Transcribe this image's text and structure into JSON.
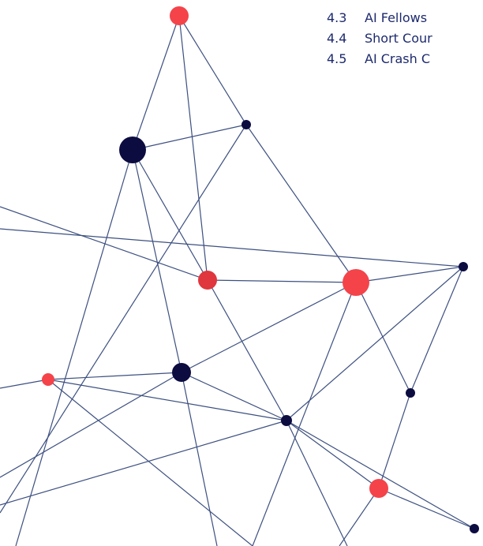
{
  "toc": {
    "items": [
      {
        "number": "4.3",
        "title": "AI Fellows"
      },
      {
        "number": "4.4",
        "title": "Short Cour"
      },
      {
        "number": "4.5",
        "title": "AI Crash C"
      }
    ]
  }
}
